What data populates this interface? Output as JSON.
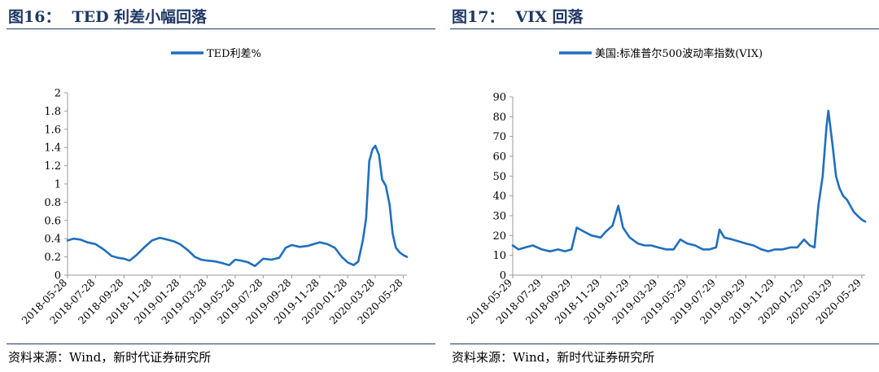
{
  "panels": [
    {
      "title_num": "图16：",
      "title_text": "TED 利差小幅回落",
      "source": "资料来源：Wind，新时代证券研究所"
    },
    {
      "title_num": "图17：",
      "title_text": "VIX 回落",
      "source": "资料来源：Wind，新时代证券研究所"
    }
  ],
  "colors": {
    "line": "#1f6fbf",
    "title": "#1f3864",
    "axis": "#999999"
  },
  "chart_data": [
    {
      "type": "line",
      "title": "",
      "legend": "TED利差%",
      "legend_placement": "top-center",
      "grid": false,
      "ylim": [
        0,
        2
      ],
      "yticks": [
        "0",
        "0.2",
        "0.4",
        "0.6",
        "0.8",
        "1",
        "1.2",
        "1.4",
        "1.6",
        "1.8",
        "2"
      ],
      "xlim": [
        "2018-05-28",
        "2020-06-05"
      ],
      "xticks": [
        "2018-05-28",
        "2018-07-28",
        "2018-09-28",
        "2018-11-28",
        "2019-01-28",
        "2019-03-28",
        "2019-05-28",
        "2019-07-28",
        "2019-09-28",
        "2019-11-28",
        "2020-01-28",
        "2020-03-28",
        "2020-05-28"
      ],
      "series": [
        {
          "name": "TED利差%",
          "x": [
            "2018-05-28",
            "2018-06-10",
            "2018-06-25",
            "2018-07-10",
            "2018-07-28",
            "2018-08-15",
            "2018-09-01",
            "2018-09-15",
            "2018-09-28",
            "2018-10-10",
            "2018-10-25",
            "2018-11-10",
            "2018-11-28",
            "2018-12-15",
            "2018-12-31",
            "2019-01-15",
            "2019-01-28",
            "2019-02-15",
            "2019-03-01",
            "2019-03-15",
            "2019-03-28",
            "2019-04-15",
            "2019-05-01",
            "2019-05-15",
            "2019-05-28",
            "2019-06-10",
            "2019-06-25",
            "2019-07-10",
            "2019-07-28",
            "2019-08-15",
            "2019-09-01",
            "2019-09-15",
            "2019-09-28",
            "2019-10-15",
            "2019-11-01",
            "2019-11-15",
            "2019-11-28",
            "2019-12-15",
            "2019-12-31",
            "2020-01-15",
            "2020-01-28",
            "2020-02-10",
            "2020-02-20",
            "2020-03-01",
            "2020-03-08",
            "2020-03-15",
            "2020-03-22",
            "2020-03-28",
            "2020-04-05",
            "2020-04-12",
            "2020-04-20",
            "2020-04-28",
            "2020-05-05",
            "2020-05-12",
            "2020-05-20",
            "2020-05-28",
            "2020-06-05"
          ],
          "values": [
            0.38,
            0.4,
            0.39,
            0.36,
            0.34,
            0.28,
            0.21,
            0.19,
            0.18,
            0.16,
            0.22,
            0.3,
            0.38,
            0.41,
            0.39,
            0.37,
            0.34,
            0.27,
            0.2,
            0.17,
            0.16,
            0.15,
            0.13,
            0.11,
            0.17,
            0.16,
            0.14,
            0.1,
            0.18,
            0.17,
            0.19,
            0.3,
            0.33,
            0.31,
            0.32,
            0.34,
            0.36,
            0.34,
            0.3,
            0.2,
            0.14,
            0.11,
            0.15,
            0.38,
            0.62,
            1.25,
            1.38,
            1.42,
            1.32,
            1.05,
            0.98,
            0.78,
            0.45,
            0.3,
            0.25,
            0.22,
            0.2
          ]
        }
      ]
    },
    {
      "type": "line",
      "title": "",
      "legend": "美国:标准普尔500波动率指数(VIX)",
      "legend_placement": "top-center",
      "grid": false,
      "ylim": [
        0,
        90
      ],
      "yticks": [
        "0",
        "10",
        "20",
        "30",
        "40",
        "50",
        "60",
        "70",
        "80",
        "90"
      ],
      "xlim": [
        "2018-05-29",
        "2020-06-05"
      ],
      "xticks": [
        "2018-05-29",
        "2018-07-29",
        "2018-09-29",
        "2018-11-29",
        "2019-01-29",
        "2019-03-29",
        "2019-05-29",
        "2019-07-29",
        "2019-09-29",
        "2019-11-29",
        "2020-01-29",
        "2020-03-29",
        "2020-05-29"
      ],
      "series": [
        {
          "name": "美国:标准普尔500波动率指数(VIX)",
          "x": [
            "2018-05-29",
            "2018-06-10",
            "2018-06-25",
            "2018-07-10",
            "2018-07-29",
            "2018-08-15",
            "2018-09-01",
            "2018-09-15",
            "2018-09-29",
            "2018-10-10",
            "2018-10-25",
            "2018-11-10",
            "2018-11-29",
            "2018-12-10",
            "2018-12-24",
            "2019-01-05",
            "2019-01-15",
            "2019-01-29",
            "2019-02-15",
            "2019-03-01",
            "2019-03-15",
            "2019-03-29",
            "2019-04-15",
            "2019-05-01",
            "2019-05-15",
            "2019-05-29",
            "2019-06-15",
            "2019-07-01",
            "2019-07-15",
            "2019-07-29",
            "2019-08-05",
            "2019-08-15",
            "2019-09-01",
            "2019-09-15",
            "2019-09-29",
            "2019-10-15",
            "2019-11-01",
            "2019-11-15",
            "2019-11-29",
            "2019-12-15",
            "2020-01-01",
            "2020-01-15",
            "2020-01-29",
            "2020-02-10",
            "2020-02-20",
            "2020-02-28",
            "2020-03-08",
            "2020-03-16",
            "2020-03-20",
            "2020-03-29",
            "2020-04-05",
            "2020-04-12",
            "2020-04-20",
            "2020-04-28",
            "2020-05-05",
            "2020-05-12",
            "2020-05-20",
            "2020-05-29",
            "2020-06-05"
          ],
          "values": [
            15,
            13,
            14,
            15,
            13,
            12,
            13,
            12,
            13,
            24,
            22,
            20,
            19,
            22,
            25,
            35,
            24,
            19,
            16,
            15,
            15,
            14,
            13,
            13,
            18,
            16,
            15,
            13,
            13,
            14,
            23,
            19,
            18,
            17,
            16,
            15,
            13,
            12,
            13,
            13,
            14,
            14,
            18,
            15,
            14,
            35,
            50,
            75,
            83,
            65,
            50,
            44,
            40,
            38,
            35,
            32,
            30,
            28,
            27
          ]
        }
      ]
    }
  ]
}
